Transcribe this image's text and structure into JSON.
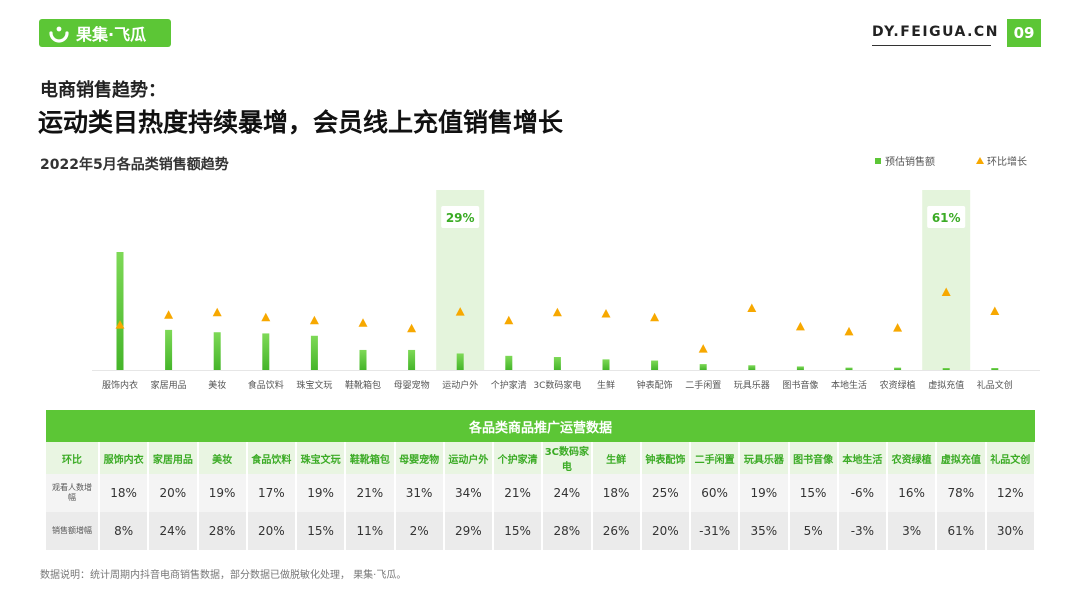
{
  "brand": {
    "logo_text": "果集·飞瓜",
    "site": "DY.FEIGUA.CN",
    "page": "09"
  },
  "heading": {
    "subtitle": "电商销售趋势：",
    "title": "运动类目热度持续暴增，会员线上充值销售增长"
  },
  "colors": {
    "accent": "#5cc636",
    "triangle": "#f7a800",
    "highlight": "#e4f4dc"
  },
  "chart_data": {
    "type": "bar",
    "title": "2022年5月各品类销售额趋势",
    "categories": [
      "服饰内衣",
      "家居用品",
      "美妆",
      "食品饮料",
      "珠宝文玩",
      "鞋靴箱包",
      "母婴宠物",
      "运动户外",
      "个护家清",
      "3C数码家电",
      "生鲜",
      "钟表配饰",
      "二手闲置",
      "玩具乐器",
      "图书音像",
      "本地生活",
      "农资绿植",
      "虚拟充值",
      "礼品文创"
    ],
    "series": [
      {
        "name": "预估销售额",
        "type": "bar",
        "values": [
          100,
          34,
          32,
          31,
          29,
          17,
          17,
          14,
          12,
          11,
          9,
          8,
          5,
          4,
          3,
          2,
          2,
          1,
          1
        ]
      },
      {
        "name": "环比增长",
        "type": "scatter",
        "marker": "triangle",
        "values": [
          8,
          24,
          28,
          20,
          15,
          11,
          2,
          29,
          15,
          28,
          26,
          20,
          -31,
          35,
          5,
          -3,
          3,
          61,
          30
        ]
      }
    ],
    "highlights": [
      {
        "category": "运动户外",
        "label": "29%"
      },
      {
        "category": "虚拟充值",
        "label": "61%"
      }
    ],
    "legend_position": "top-right",
    "grid": false
  },
  "table": {
    "title": "各品类商品推广运营数据",
    "first_col_label": "环比",
    "categories": [
      "服饰内衣",
      "家居用品",
      "美妆",
      "食品饮料",
      "珠宝文玩",
      "鞋靴箱包",
      "母婴宠物",
      "运动户外",
      "个护家清",
      "3C数码家电",
      "生鲜",
      "钟表配饰",
      "二手闲置",
      "玩具乐器",
      "图书音像",
      "本地生活",
      "农资绿植",
      "虚拟充值",
      "礼品文创"
    ],
    "rows": [
      {
        "label": "观看人数增幅",
        "values": [
          "18%",
          "20%",
          "19%",
          "17%",
          "19%",
          "21%",
          "31%",
          "34%",
          "21%",
          "24%",
          "18%",
          "25%",
          "60%",
          "19%",
          "15%",
          "-6%",
          "16%",
          "78%",
          "12%"
        ]
      },
      {
        "label": "销售额增幅",
        "values": [
          "8%",
          "24%",
          "28%",
          "20%",
          "15%",
          "11%",
          "2%",
          "29%",
          "15%",
          "28%",
          "26%",
          "20%",
          "-31%",
          "35%",
          "5%",
          "-3%",
          "3%",
          "61%",
          "30%"
        ]
      }
    ]
  },
  "note": "数据说明：统计周期内抖音电商销售数据，部分数据已做脱敏化处理， 果集·飞瓜。"
}
